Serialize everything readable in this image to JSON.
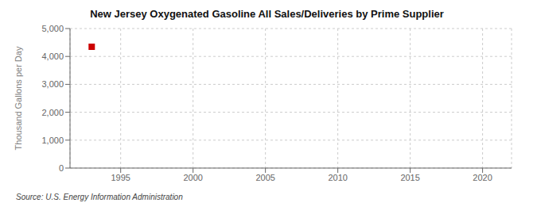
{
  "chart_data": {
    "type": "scatter",
    "title": "New Jersey Oxygenated Gasoline All Sales/Deliveries by Prime Supplier",
    "ylabel": "Thousand Gallons per Day",
    "source": "Source: U.S. Energy Information Administration",
    "x": [
      1993
    ],
    "values": [
      4347
    ],
    "color": "#cc0000",
    "marker": "square",
    "xlim": [
      1991.5,
      2022
    ],
    "ylim": [
      0,
      5000
    ],
    "xticks": [
      1995,
      2000,
      2005,
      2010,
      2015,
      2020
    ],
    "yticks": [
      0,
      {
        "value": 1000,
        "label": "1,000"
      },
      {
        "value": 2000,
        "label": "2,000"
      },
      {
        "value": 3000,
        "label": "3,000"
      },
      {
        "value": 4000,
        "label": "4,000"
      },
      {
        "value": 5000,
        "label": "5,000"
      }
    ],
    "grid": true
  }
}
